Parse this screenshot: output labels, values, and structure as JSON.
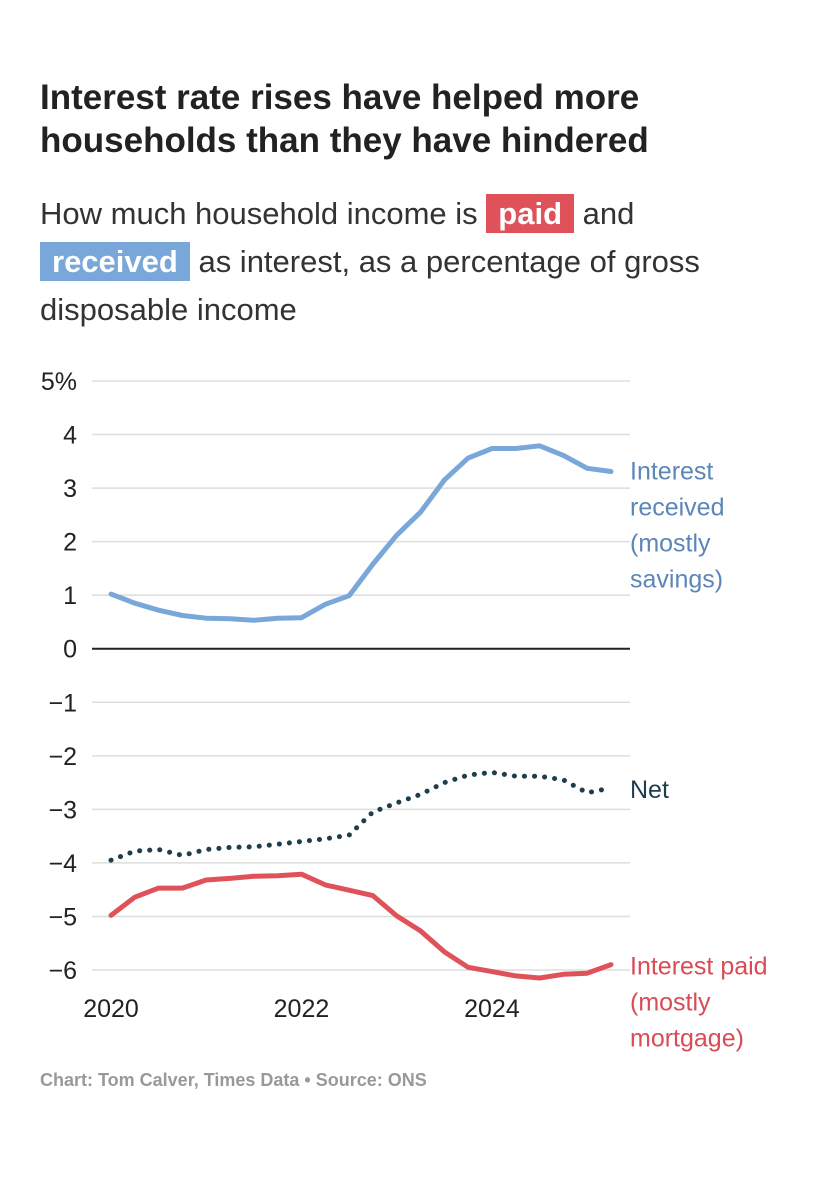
{
  "header": {
    "title": "Interest rate rises have helped more households than they have hindered",
    "subtitle_pre": "How much household income is",
    "subtitle_paid": "paid",
    "subtitle_and": "and",
    "subtitle_received": "received",
    "subtitle_post": "as interest, as a percentage of gross disposable income"
  },
  "footer": {
    "credit": "Chart: Tom Calver, Times Data • Source: ONS"
  },
  "colors": {
    "received": "#7aa7d9",
    "paid": "#e0525a",
    "net": "#1f3d4d",
    "received_label": "#5b86b8",
    "paid_label": "#d94b55",
    "grid": "#dddddd",
    "zero": "#222222"
  },
  "chart_data": {
    "type": "line",
    "title": "",
    "xlabel": "",
    "ylabel": "",
    "xlim": [
      2020,
      2025.25
    ],
    "ylim": [
      -6,
      5
    ],
    "grid": true,
    "x_ticks": [
      {
        "value": 2020,
        "label": "2020"
      },
      {
        "value": 2022,
        "label": "2022"
      },
      {
        "value": 2024,
        "label": "2024"
      }
    ],
    "y_ticks": [
      {
        "value": 5,
        "label": "5%"
      },
      {
        "value": 4,
        "label": "4"
      },
      {
        "value": 3,
        "label": "3"
      },
      {
        "value": 2,
        "label": "2"
      },
      {
        "value": 1,
        "label": "1"
      },
      {
        "value": 0,
        "label": "0"
      },
      {
        "value": -1,
        "label": "−1"
      },
      {
        "value": -2,
        "label": "−2"
      },
      {
        "value": -3,
        "label": "−3"
      },
      {
        "value": -4,
        "label": "−4"
      },
      {
        "value": -5,
        "label": "−5"
      },
      {
        "value": -6,
        "label": "−6"
      }
    ],
    "x": [
      2020.0,
      2020.25,
      2020.5,
      2020.75,
      2021.0,
      2021.25,
      2021.5,
      2021.75,
      2022.0,
      2022.25,
      2022.5,
      2022.75,
      2023.0,
      2023.25,
      2023.5,
      2023.75,
      2024.0,
      2024.25,
      2024.5,
      2024.75,
      2025.0,
      2025.25
    ],
    "series": [
      {
        "key": "received",
        "name": "Interest received (mostly savings)",
        "label_lines": [
          "Interest",
          "received",
          "(mostly",
          "savings)"
        ],
        "values": [
          1.02,
          0.85,
          0.72,
          0.62,
          0.57,
          0.56,
          0.53,
          0.57,
          0.58,
          0.83,
          0.99,
          1.58,
          2.12,
          2.55,
          3.15,
          3.56,
          3.74,
          3.74,
          3.79,
          3.61,
          3.37,
          3.31
        ]
      },
      {
        "key": "net",
        "name": "Net",
        "label_lines": [
          "Net"
        ],
        "values": [
          -3.95,
          -3.78,
          -3.75,
          -3.86,
          -3.75,
          -3.71,
          -3.7,
          -3.65,
          -3.6,
          -3.55,
          -3.48,
          -3.05,
          -2.88,
          -2.72,
          -2.5,
          -2.36,
          -2.31,
          -2.38,
          -2.38,
          -2.45,
          -2.69,
          -2.6
        ]
      },
      {
        "key": "paid",
        "name": "Interest paid (mostly mortgage)",
        "label_lines": [
          "Interest paid",
          "(mostly",
          "mortgage)"
        ],
        "values": [
          -4.98,
          -4.64,
          -4.47,
          -4.47,
          -4.32,
          -4.29,
          -4.25,
          -4.24,
          -4.21,
          -4.41,
          -4.51,
          -4.61,
          -4.99,
          -5.27,
          -5.66,
          -5.95,
          -6.03,
          -6.11,
          -6.15,
          -6.08,
          -6.06,
          -5.9
        ]
      }
    ]
  }
}
